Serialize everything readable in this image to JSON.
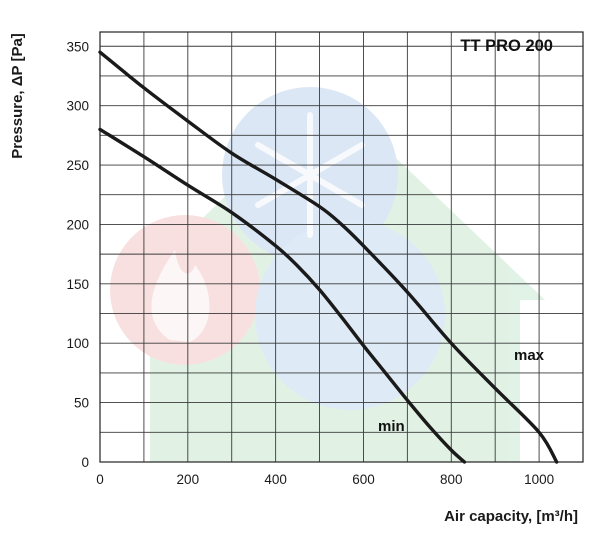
{
  "chart_data": {
    "type": "line",
    "title": "TT PRO 200",
    "xlabel": "Air capacity, [m³/h]",
    "ylabel": "Pressure, ΔP [Pa]",
    "xlim": [
      0,
      1100
    ],
    "ylim": [
      0,
      362
    ],
    "x_ticks": [
      0,
      200,
      400,
      600,
      800,
      1000
    ],
    "y_ticks": [
      0,
      50,
      100,
      150,
      200,
      250,
      300,
      350
    ],
    "grid": true,
    "grid_x_step": 100,
    "grid_y_step": 25,
    "series": [
      {
        "name": "max",
        "x": [
          0,
          100,
          200,
          300,
          400,
          500,
          550,
          600,
          700,
          800,
          900,
          1000,
          1040
        ],
        "y": [
          345,
          315,
          287,
          260,
          238,
          215,
          200,
          182,
          143,
          100,
          62,
          25,
          0
        ]
      },
      {
        "name": "min",
        "x": [
          0,
          100,
          200,
          300,
          400,
          450,
          500,
          550,
          600,
          650,
          700,
          750,
          800,
          830
        ],
        "y": [
          280,
          257,
          233,
          210,
          182,
          165,
          145,
          122,
          98,
          75,
          52,
          30,
          10,
          0
        ]
      }
    ],
    "colors": {
      "curve": "#1a1a1a",
      "grid": "#3a3a3a",
      "watermark_green": "#cfe9d6",
      "watermark_blue": "#c7dcef",
      "watermark_red": "#f5cdcd"
    }
  }
}
